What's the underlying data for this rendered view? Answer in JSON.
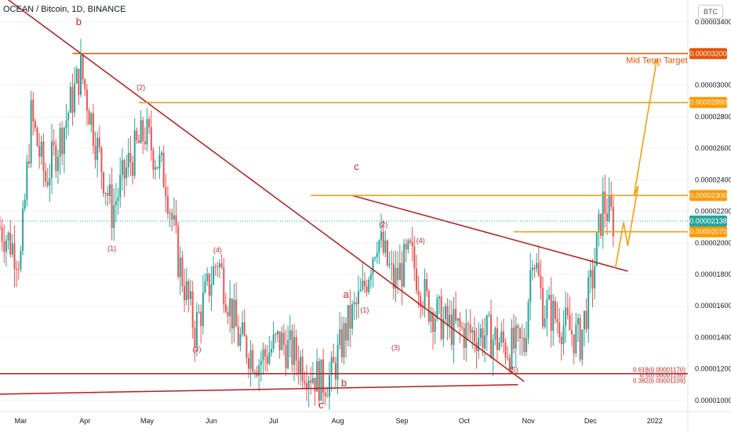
{
  "header": {
    "title": "OCEAN / Bitcoin, 1D, BINANCE",
    "currency_badge": "BTC"
  },
  "chart_data": {
    "type": "candlestick",
    "symbol": "OCEAN / Bitcoin",
    "interval": "1D",
    "exchange": "BINANCE",
    "y_axis_ticks": [
      "0.00003400",
      "0.00003000",
      "0.00002800",
      "0.00002600",
      "0.00002400",
      "0.00002200",
      "0.00002000",
      "0.00001800",
      "0.00001600",
      "0.00001400",
      "0.00001200",
      "0.00001000"
    ],
    "y_tick_values": [
      3.4e-05,
      3e-05,
      2.8e-05,
      2.6e-05,
      2.4e-05,
      2.2e-05,
      2e-05,
      1.8e-05,
      1.6e-05,
      1.4e-05,
      1.2e-05,
      1e-05
    ],
    "ylim": [
      9.3e-06,
      3.54e-05
    ],
    "x_axis_ticks": [
      "Mar",
      "Apr",
      "May",
      "Jun",
      "Jul",
      "Aug",
      "Sep",
      "Oct",
      "Nov",
      "Dec",
      "2022"
    ],
    "x_tick_day": [
      0,
      31,
      61,
      92,
      122,
      153,
      184,
      214,
      245,
      275,
      306
    ],
    "x_range_days": [
      -10,
      322
    ],
    "price_levels": [
      {
        "value": 3.2e-05,
        "label": "0.00003200",
        "color": "#e65100",
        "from_day": 25
      },
      {
        "value": 2.89e-05,
        "label": "0.00002890",
        "color": "#ff9800",
        "from_day": 57
      },
      {
        "value": 2.3e-05,
        "label": "0.00002300",
        "color": "#ff9800",
        "from_day": 140
      },
      {
        "value": 2.07e-05,
        "label": "0.00002070",
        "color": "#ff9800",
        "from_day": 238
      },
      {
        "value": 2.138e-05,
        "label": "0.00002138",
        "color": "#26a69a",
        "from_day": -10,
        "current": true
      }
    ],
    "fib_labels": [
      "0.618(0.00001170)",
      "0.5(0.00001150)",
      "0.382(0.00001109)"
    ],
    "annotations": [
      {
        "text": "b",
        "day": 28,
        "price": 3.38e-05,
        "color": "#c62828",
        "size": 13
      },
      {
        "text": "(2)",
        "day": 58,
        "price": 2.97e-05,
        "color": "#c62828",
        "size": 9
      },
      {
        "text": "(1)",
        "day": 44,
        "price": 1.95e-05,
        "color": "#c62828",
        "size": 9
      },
      {
        "text": "(3)",
        "day": 85,
        "price": 1.31e-05,
        "color": "#c62828",
        "size": 9
      },
      {
        "text": "(4)",
        "day": 95,
        "price": 1.94e-05,
        "color": "#c62828",
        "size": 9
      },
      {
        "text": "a",
        "day": 157,
        "price": 1.65e-05,
        "color": "#c62828",
        "size": 13
      },
      {
        "text": "c",
        "day": 162,
        "price": 2.46e-05,
        "color": "#c62828",
        "size": 13
      },
      {
        "text": "(2)",
        "day": 175,
        "price": 2.1e-05,
        "color": "#c62828",
        "size": 9
      },
      {
        "text": "(1)",
        "day": 166,
        "price": 1.56e-05,
        "color": "#c62828",
        "size": 9
      },
      {
        "text": "(4)",
        "day": 193,
        "price": 2e-05,
        "color": "#c62828",
        "size": 9
      },
      {
        "text": "(3)",
        "day": 181,
        "price": 1.32e-05,
        "color": "#c62828",
        "size": 9
      },
      {
        "text": "(5)",
        "day": 238,
        "price": 1.18e-05,
        "color": "#c62828",
        "size": 9
      },
      {
        "text": "b",
        "day": 156,
        "price": 1.09e-05,
        "color": "#c62828",
        "size": 13
      },
      {
        "text": "c",
        "day": 145,
        "price": 9.5e-06,
        "color": "#c62828",
        "size": 13
      },
      {
        "text": "Mid Term Target",
        "day": 307,
        "price": 3.14e-05,
        "color": "#e65100",
        "size": 11
      }
    ],
    "series": [
      {
        "name": "",
        "color_up": "#26a69a",
        "color_down": "#ef5350",
        "close_anchors": [
          {
            "day": -10,
            "close": 2.1e-05
          },
          {
            "day": 0,
            "close": 1.9e-05
          },
          {
            "day": 5,
            "close": 2.8e-05
          },
          {
            "day": 12,
            "close": 2.4e-05
          },
          {
            "day": 20,
            "close": 2.7e-05
          },
          {
            "day": 29,
            "close": 3.1e-05
          },
          {
            "day": 37,
            "close": 2.6e-05
          },
          {
            "day": 44,
            "close": 2.2e-05
          },
          {
            "day": 52,
            "close": 2.5e-05
          },
          {
            "day": 60,
            "close": 2.7e-05
          },
          {
            "day": 70,
            "close": 2.4e-05
          },
          {
            "day": 76,
            "close": 1.9e-05
          },
          {
            "day": 84,
            "close": 1.45e-05
          },
          {
            "day": 95,
            "close": 1.9e-05
          },
          {
            "day": 105,
            "close": 1.4e-05
          },
          {
            "day": 115,
            "close": 1.25e-05
          },
          {
            "day": 125,
            "close": 1.38e-05
          },
          {
            "day": 135,
            "close": 1.25e-05
          },
          {
            "day": 145,
            "close": 1.12e-05
          },
          {
            "day": 150,
            "close": 1.15e-05
          },
          {
            "day": 157,
            "close": 1.45e-05
          },
          {
            "day": 165,
            "close": 1.68e-05
          },
          {
            "day": 172,
            "close": 2.05e-05
          },
          {
            "day": 180,
            "close": 1.75e-05
          },
          {
            "day": 188,
            "close": 1.92e-05
          },
          {
            "day": 196,
            "close": 1.62e-05
          },
          {
            "day": 205,
            "close": 1.48e-05
          },
          {
            "day": 215,
            "close": 1.43e-05
          },
          {
            "day": 225,
            "close": 1.42e-05
          },
          {
            "day": 236,
            "close": 1.33e-05
          },
          {
            "day": 243,
            "close": 1.35e-05
          },
          {
            "day": 247,
            "close": 1.98e-05
          },
          {
            "day": 252,
            "close": 1.6e-05
          },
          {
            "day": 262,
            "close": 1.48e-05
          },
          {
            "day": 270,
            "close": 1.38e-05
          },
          {
            "day": 276,
            "close": 1.78e-05
          },
          {
            "day": 281,
            "close": 2.25e-05
          },
          {
            "day": 286,
            "close": 2.138e-05
          }
        ]
      }
    ],
    "trendlines": [
      {
        "p1": [
          -10,
          3.58e-05
        ],
        "p2": [
          243,
          1.12e-05
        ],
        "color": "#b71c1c"
      },
      {
        "p1": [
          160,
          2.3e-05
        ],
        "p2": [
          293,
          1.82e-05
        ],
        "color": "#b71c1c"
      },
      {
        "p1": [
          -10,
          1.04e-05
        ],
        "p2": [
          240,
          1.1e-05
        ],
        "color": "#b71c1c"
      },
      {
        "p1": [
          -10,
          1.17e-05
        ],
        "p2": [
          322,
          1.17e-05
        ],
        "color": "#b71c1c"
      }
    ],
    "forecast_path": [
      [
        287,
        1.84e-05
      ],
      [
        291,
        2.13e-05
      ],
      [
        293,
        1.98e-05
      ],
      [
        298,
        2.36e-05
      ],
      [
        296,
        2.3e-05
      ],
      [
        307,
        3.16e-05
      ]
    ]
  }
}
